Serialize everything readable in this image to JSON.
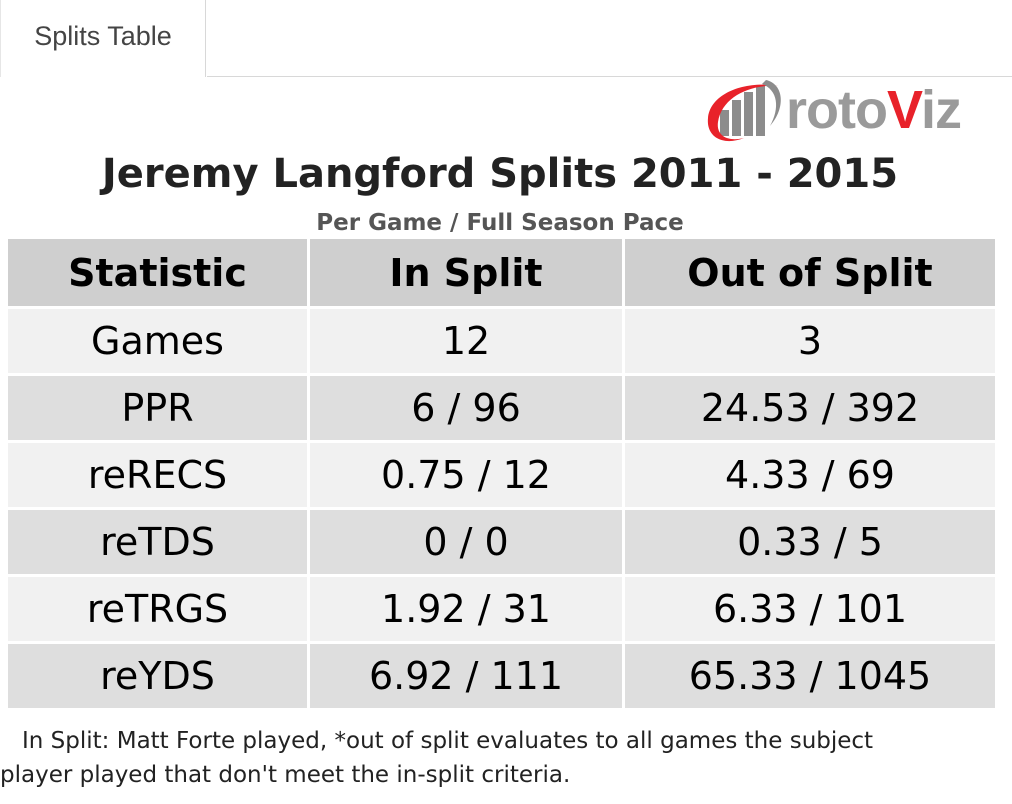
{
  "tabs": [
    {
      "label": "Splits Table",
      "active": true
    }
  ],
  "logo": {
    "text_grey": "roto",
    "text_red": "V",
    "text_grey2": "iz",
    "colors": {
      "red": "#e8222a",
      "grey": "#9a9a9a"
    },
    "icon": "bar-chart-swoosh-icon"
  },
  "title": "Jeremy Langford Splits 2011 - 2015",
  "subtitle": "Per Game / Full Season Pace",
  "table": {
    "columns": [
      "Statistic",
      "In Split",
      "Out of Split"
    ],
    "rows": [
      [
        "Games",
        "12",
        "3"
      ],
      [
        "PPR",
        "6 / 96",
        "24.53 / 392"
      ],
      [
        "reRECS",
        "0.75 / 12",
        "4.33 / 69"
      ],
      [
        "reTDS",
        "0 / 0",
        "0.33 / 5"
      ],
      [
        "reTRGS",
        "1.92 / 31",
        "6.33 / 101"
      ],
      [
        "reYDS",
        "6.92 / 111",
        "65.33 / 1045"
      ]
    ]
  },
  "footnote": {
    "line1": "In Split: Matt Forte played,  *out of split evaluates to all games the subject",
    "line2": "player played that don't meet the in-split criteria."
  }
}
